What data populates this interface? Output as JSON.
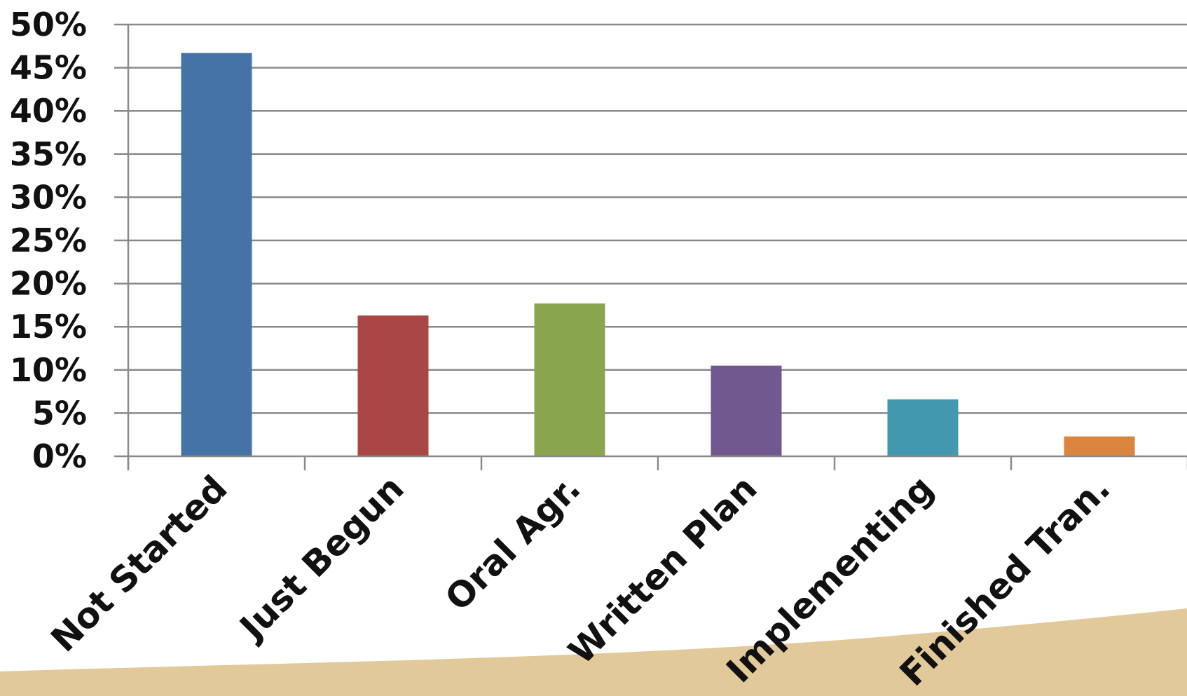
{
  "chart_data": {
    "type": "bar",
    "categories": [
      "Not Started",
      "Just Begun",
      "Oral Agr.",
      "Written Plan",
      "Implementing",
      "Finished Tran."
    ],
    "values": [
      46.7,
      16.3,
      17.7,
      10.5,
      6.6,
      2.3
    ],
    "colors": [
      "#4572A7",
      "#AA4643",
      "#89A54E",
      "#71588F",
      "#4198AF",
      "#DB843D"
    ],
    "y_ticks": [
      "0%",
      "5%",
      "10%",
      "15%",
      "20%",
      "25%",
      "30%",
      "35%",
      "40%",
      "45%",
      "50%"
    ],
    "ylim": [
      0,
      50
    ],
    "y_unit": "%",
    "grid": true,
    "legend": "none",
    "title": "",
    "xlabel": "",
    "ylabel": ""
  },
  "decor": {
    "background_color": "#ffffff",
    "wave_color": "#E2C99A",
    "grid_color": "#8a8a8a",
    "axis_color": "#8a8a8a"
  }
}
